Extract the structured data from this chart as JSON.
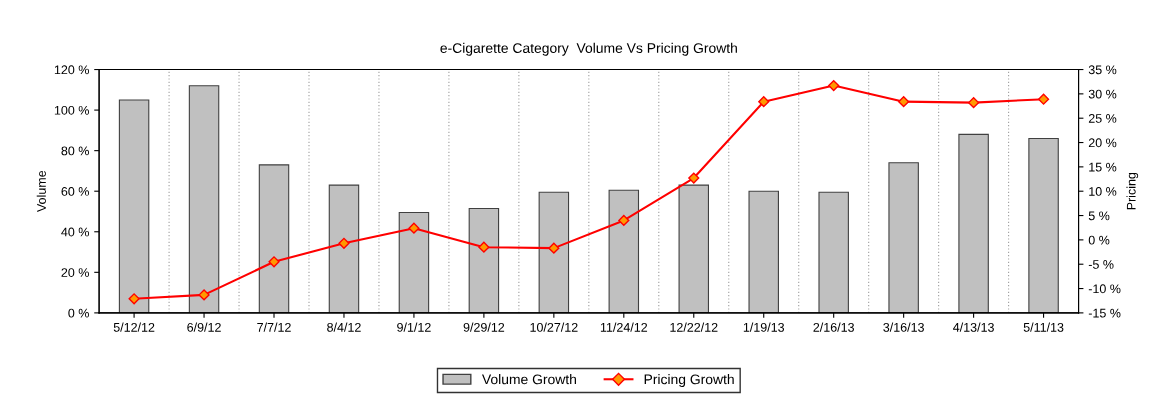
{
  "chart_data": {
    "type": "bar",
    "title": "e-Cigarette Category  Volume Vs Pricing Growth",
    "ylabel": "Volume",
    "y2label": "Pricing",
    "categories": [
      "5/12/12",
      "6/9/12",
      "7/7/12",
      "8/4/12",
      "9/1/12",
      "9/29/12",
      "10/27/12",
      "11/24/12",
      "12/22/12",
      "1/19/13",
      "2/16/13",
      "3/16/13",
      "4/13/13",
      "5/11/13"
    ],
    "series": [
      {
        "name": "Volume Growth",
        "color": "#c0c0c0",
        "values": [
          105,
          112,
          73,
          63,
          49.5,
          51.5,
          59.5,
          60.5,
          63,
          60,
          59.5,
          74,
          88,
          86
        ]
      },
      {
        "name": "Pricing Growth",
        "type": "line",
        "axis": "y2",
        "color": "#ff0000",
        "marker": "diamond",
        "values": [
          -12.1,
          -11.3,
          -4.5,
          -0.7,
          2.4,
          -1.5,
          -1.7,
          4.0,
          12.7,
          28.4,
          31.7,
          28.4,
          28.2,
          28.9
        ]
      }
    ],
    "ylim": [
      0,
      120
    ],
    "yticks": [
      {
        "value": 0,
        "label": "0 %"
      },
      {
        "value": 20,
        "label": "20 %"
      },
      {
        "value": 40,
        "label": "40 %"
      },
      {
        "value": 60,
        "label": "60 %"
      },
      {
        "value": 80,
        "label": "80 %"
      },
      {
        "value": 100,
        "label": "100 %"
      },
      {
        "value": 120,
        "label": "120 %"
      }
    ],
    "y2lim": [
      -15,
      35
    ],
    "y2ticks": [
      {
        "value": -15,
        "label": "-15 %"
      },
      {
        "value": -10,
        "label": "-10 %"
      },
      {
        "value": -5,
        "label": "-5 %"
      },
      {
        "value": 0,
        "label": "0 %"
      },
      {
        "value": 5,
        "label": "5 %"
      },
      {
        "value": 10,
        "label": "10 %"
      },
      {
        "value": 15,
        "label": "15 %"
      },
      {
        "value": 20,
        "label": "20 %"
      },
      {
        "value": 25,
        "label": "25 %"
      },
      {
        "value": 30,
        "label": "30 %"
      },
      {
        "value": 35,
        "label": "35 %"
      }
    ],
    "grid": "x",
    "legend": "bottom"
  }
}
